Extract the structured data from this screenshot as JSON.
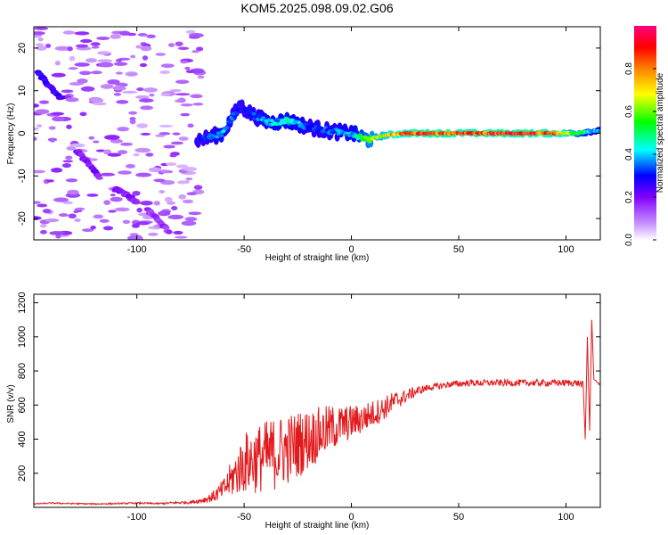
{
  "title": "KOM5.2025.098.09.02.G06",
  "chart_data": [
    {
      "type": "heatmap",
      "name": "spectrogram",
      "xlabel": "Height of straight line (km)",
      "ylabel": "Frequency (Hz)",
      "xlim": [
        -148,
        116
      ],
      "ylim": [
        -25,
        25
      ],
      "xticks": [
        -100,
        -50,
        0,
        50,
        100
      ],
      "yticks": [
        -20,
        -10,
        0,
        10,
        20
      ],
      "colorbar": {
        "label": "Normalized spectral amplitude",
        "range": [
          0,
          1
        ],
        "ticks": [
          0.0,
          0.2,
          0.4,
          0.6,
          0.8
        ],
        "tick_labels": [
          "0.0",
          "0.2",
          "0.4",
          "0.6",
          "0.8"
        ],
        "colors": [
          "#ffffff",
          "#cc99ff",
          "#8000ff",
          "#0000ff",
          "#00ffff",
          "#00ff00",
          "#ffff00",
          "#ff8000",
          "#ff0000",
          "#ff0080"
        ]
      },
      "ridge": [
        {
          "x": -70,
          "f": -1.5,
          "a": 0.3
        },
        {
          "x": -60,
          "f": 0.0,
          "a": 0.4
        },
        {
          "x": -52,
          "f": 6.5,
          "a": 0.3
        },
        {
          "x": -45,
          "f": 4.0,
          "a": 0.35
        },
        {
          "x": -38,
          "f": 2.5,
          "a": 0.4
        },
        {
          "x": -30,
          "f": 3.0,
          "a": 0.45
        },
        {
          "x": -20,
          "f": 1.5,
          "a": 0.35
        },
        {
          "x": -10,
          "f": 0.5,
          "a": 0.35
        },
        {
          "x": 0,
          "f": 0.0,
          "a": 0.4
        },
        {
          "x": 8,
          "f": -1.5,
          "a": 0.6
        },
        {
          "x": 15,
          "f": -0.5,
          "a": 0.7
        },
        {
          "x": 25,
          "f": 0.0,
          "a": 0.85
        },
        {
          "x": 40,
          "f": 0.0,
          "a": 0.9
        },
        {
          "x": 60,
          "f": 0.0,
          "a": 0.9
        },
        {
          "x": 80,
          "f": 0.0,
          "a": 0.9
        },
        {
          "x": 95,
          "f": 0.0,
          "a": 0.85
        },
        {
          "x": 105,
          "f": 0.0,
          "a": 0.6
        },
        {
          "x": 112,
          "f": 0.5,
          "a": 0.4
        }
      ],
      "streaks": [
        {
          "x0": -146,
          "f0": 14,
          "x1": -135,
          "f1": 8,
          "a": 0.25
        },
        {
          "x0": -128,
          "f0": -4,
          "x1": -118,
          "f1": -10,
          "a": 0.2
        },
        {
          "x0": -110,
          "f0": -13,
          "x1": -100,
          "f1": -16,
          "a": 0.18
        },
        {
          "x0": -95,
          "f0": -18,
          "x1": -85,
          "f1": -23,
          "a": 0.15
        }
      ]
    },
    {
      "type": "line",
      "name": "snr",
      "xlabel": "Height of straight line (km)",
      "ylabel": "SNR (v/v)",
      "xlim": [
        -148,
        116
      ],
      "ylim": [
        0,
        1250
      ],
      "xticks": [
        -100,
        -50,
        0,
        50,
        100
      ],
      "yticks": [
        200,
        400,
        600,
        800,
        1000,
        1200
      ],
      "series": [
        {
          "color": "#e31a1c",
          "x": [
            -148,
            -140,
            -130,
            -120,
            -110,
            -100,
            -90,
            -80,
            -75,
            -70,
            -65,
            -60,
            -55,
            -50,
            -45,
            -40,
            -35,
            -30,
            -25,
            -20,
            -15,
            -10,
            -5,
            0,
            5,
            10,
            15,
            20,
            25,
            30,
            35,
            40,
            45,
            50,
            55,
            60,
            65,
            70,
            75,
            80,
            85,
            90,
            95,
            100,
            105,
            108,
            109,
            110,
            111,
            112,
            113,
            116
          ],
          "y": [
            20,
            25,
            22,
            20,
            22,
            25,
            22,
            28,
            30,
            40,
            60,
            100,
            180,
            260,
            280,
            300,
            320,
            340,
            370,
            400,
            430,
            460,
            480,
            500,
            520,
            550,
            580,
            620,
            650,
            680,
            700,
            710,
            720,
            725,
            730,
            730,
            730,
            730,
            730,
            730,
            730,
            730,
            730,
            730,
            730,
            720,
            400,
            1000,
            450,
            1100,
            750,
            720
          ],
          "noise": [
            3,
            4,
            4,
            4,
            4,
            5,
            5,
            8,
            10,
            15,
            30,
            60,
            120,
            180,
            200,
            210,
            220,
            210,
            200,
            180,
            160,
            140,
            120,
            100,
            90,
            80,
            70,
            60,
            40,
            30,
            20,
            20,
            20,
            20,
            20,
            20,
            20,
            20,
            20,
            20,
            20,
            20,
            20,
            20,
            20,
            20,
            0,
            0,
            0,
            0,
            0,
            10
          ]
        }
      ]
    }
  ]
}
